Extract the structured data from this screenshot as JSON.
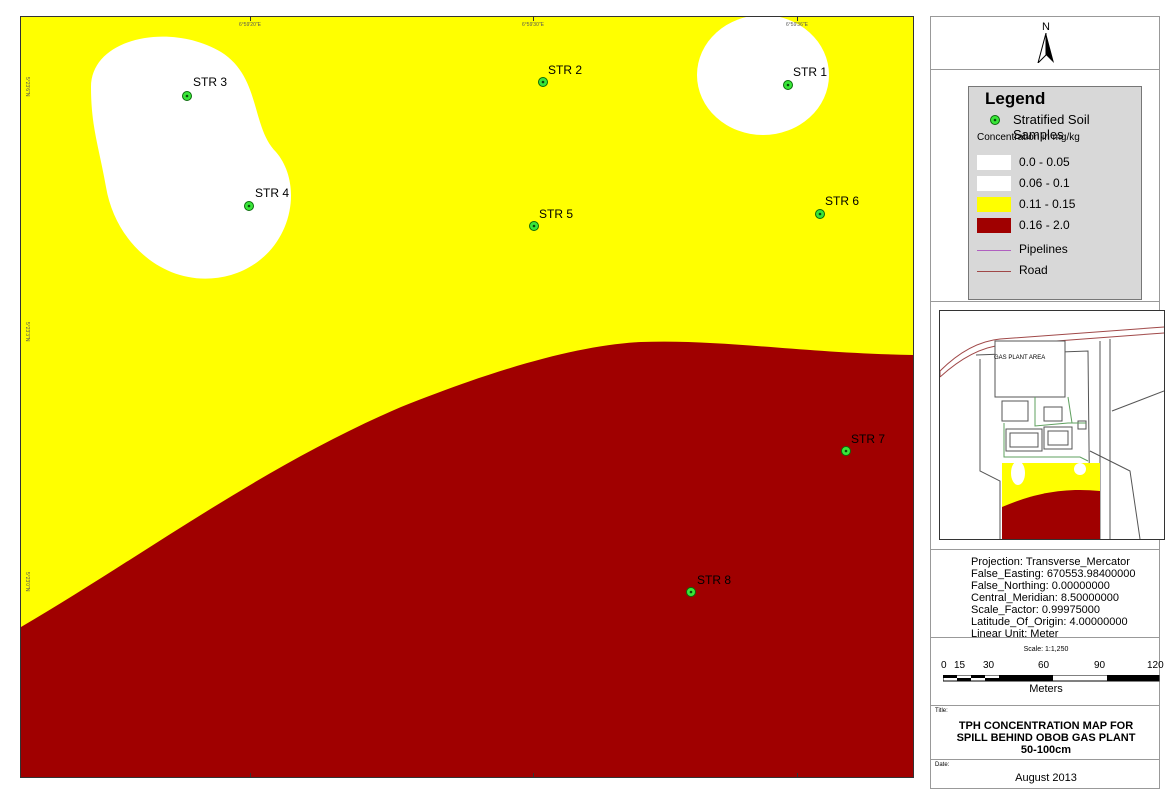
{
  "map": {
    "coords_top": [
      "6°59'20\"E",
      "6°59'30\"E",
      "6°59'36\"E"
    ],
    "coords_side": [
      "5°23'6\"N",
      "5°23'3\"N",
      "5°23'0\"N"
    ],
    "samples": [
      {
        "label": "STR 1"
      },
      {
        "label": "STR 2"
      },
      {
        "label": "STR 3"
      },
      {
        "label": "STR 4"
      },
      {
        "label": "STR 5"
      },
      {
        "label": "STR 6"
      },
      {
        "label": "STR 7"
      },
      {
        "label": "STR 8"
      }
    ],
    "colors": {
      "low": "#ffffff",
      "mid": "#ffff00",
      "high": "#a00000",
      "sample": "#39e639"
    }
  },
  "north_arrow": {
    "label": "N"
  },
  "legend": {
    "title": "Legend",
    "samples_label": "Stratified Soil Samples",
    "concentration_label": "Concentration in mg/kg",
    "classes": [
      {
        "label": "0.0 - 0.05",
        "color": "#ffffff"
      },
      {
        "label": "0.06 - 0.1",
        "color": "#ffffff"
      },
      {
        "label": "0.11 - 0.15",
        "color": "#ffff00"
      },
      {
        "label": "0.16 - 2.0",
        "color": "#a00000"
      }
    ],
    "pipelines_label": "Pipelines",
    "road_label": "Road"
  },
  "inset": {
    "area_label": "GAS PLANT AREA"
  },
  "projection": {
    "lines": [
      "Projection: Transverse_Mercator",
      "False_Easting: 670553.98400000",
      "False_Northing: 0.00000000",
      "Central_Meridian: 8.50000000",
      "Scale_Factor: 0.99975000",
      "Latitude_Of_Origin: 4.00000000",
      "Linear Unit: Meter"
    ]
  },
  "scale": {
    "ratio": "Scale: 1:1,250",
    "ticks": [
      "0",
      "15",
      "30",
      "60",
      "90",
      "120"
    ],
    "unit": "Meters"
  },
  "title_block": {
    "label": "Title:",
    "lines": [
      "TPH CONCENTRATION MAP FOR",
      "SPILL BEHIND OBOB GAS PLANT",
      "50-100cm"
    ]
  },
  "date_block": {
    "label": "Date:",
    "value": "August 2013"
  }
}
